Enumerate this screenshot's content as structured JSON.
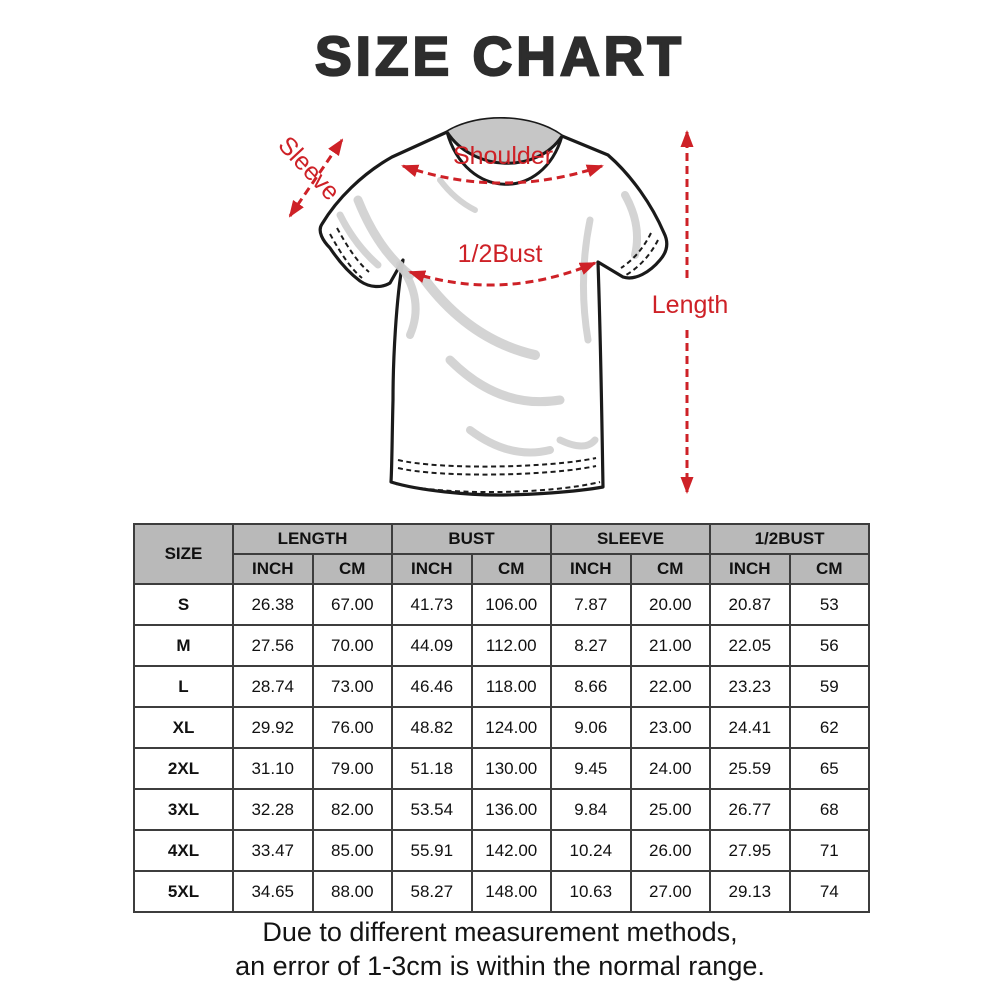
{
  "page": {
    "title": "SIZE CHART",
    "note": {
      "line1": "Due to different measurement methods,",
      "line2": "an error of 1-3cm is within the normal range."
    }
  },
  "diagram": {
    "labels": {
      "sleeve": "Sleeve",
      "shoulder": "Shoulder",
      "half_bust": "1/2Bust",
      "length": "Length"
    },
    "annotation_color": "#ce2127"
  },
  "table": {
    "size_header": "SIZE",
    "group_headers": [
      "LENGTH",
      "BUST",
      "SLEEVE",
      "1/2BUST"
    ],
    "unit_headers": [
      "INCH",
      "CM",
      "INCH",
      "CM",
      "INCH",
      "CM",
      "INCH",
      "CM"
    ],
    "header_bg": "#b9b9b9",
    "rows": [
      {
        "size": "S",
        "values": [
          "26.38",
          "67.00",
          "41.73",
          "106.00",
          "7.87",
          "20.00",
          "20.87",
          "53"
        ]
      },
      {
        "size": "M",
        "values": [
          "27.56",
          "70.00",
          "44.09",
          "112.00",
          "8.27",
          "21.00",
          "22.05",
          "56"
        ]
      },
      {
        "size": "L",
        "values": [
          "28.74",
          "73.00",
          "46.46",
          "118.00",
          "8.66",
          "22.00",
          "23.23",
          "59"
        ]
      },
      {
        "size": "XL",
        "values": [
          "29.92",
          "76.00",
          "48.82",
          "124.00",
          "9.06",
          "23.00",
          "24.41",
          "62"
        ]
      },
      {
        "size": "2XL",
        "values": [
          "31.10",
          "79.00",
          "51.18",
          "130.00",
          "9.45",
          "24.00",
          "25.59",
          "65"
        ]
      },
      {
        "size": "3XL",
        "values": [
          "32.28",
          "82.00",
          "53.54",
          "136.00",
          "9.84",
          "25.00",
          "26.77",
          "68"
        ]
      },
      {
        "size": "4XL",
        "values": [
          "33.47",
          "85.00",
          "55.91",
          "142.00",
          "10.24",
          "26.00",
          "27.95",
          "71"
        ]
      },
      {
        "size": "5XL",
        "values": [
          "34.65",
          "88.00",
          "58.27",
          "148.00",
          "10.63",
          "27.00",
          "29.13",
          "74"
        ]
      }
    ]
  }
}
